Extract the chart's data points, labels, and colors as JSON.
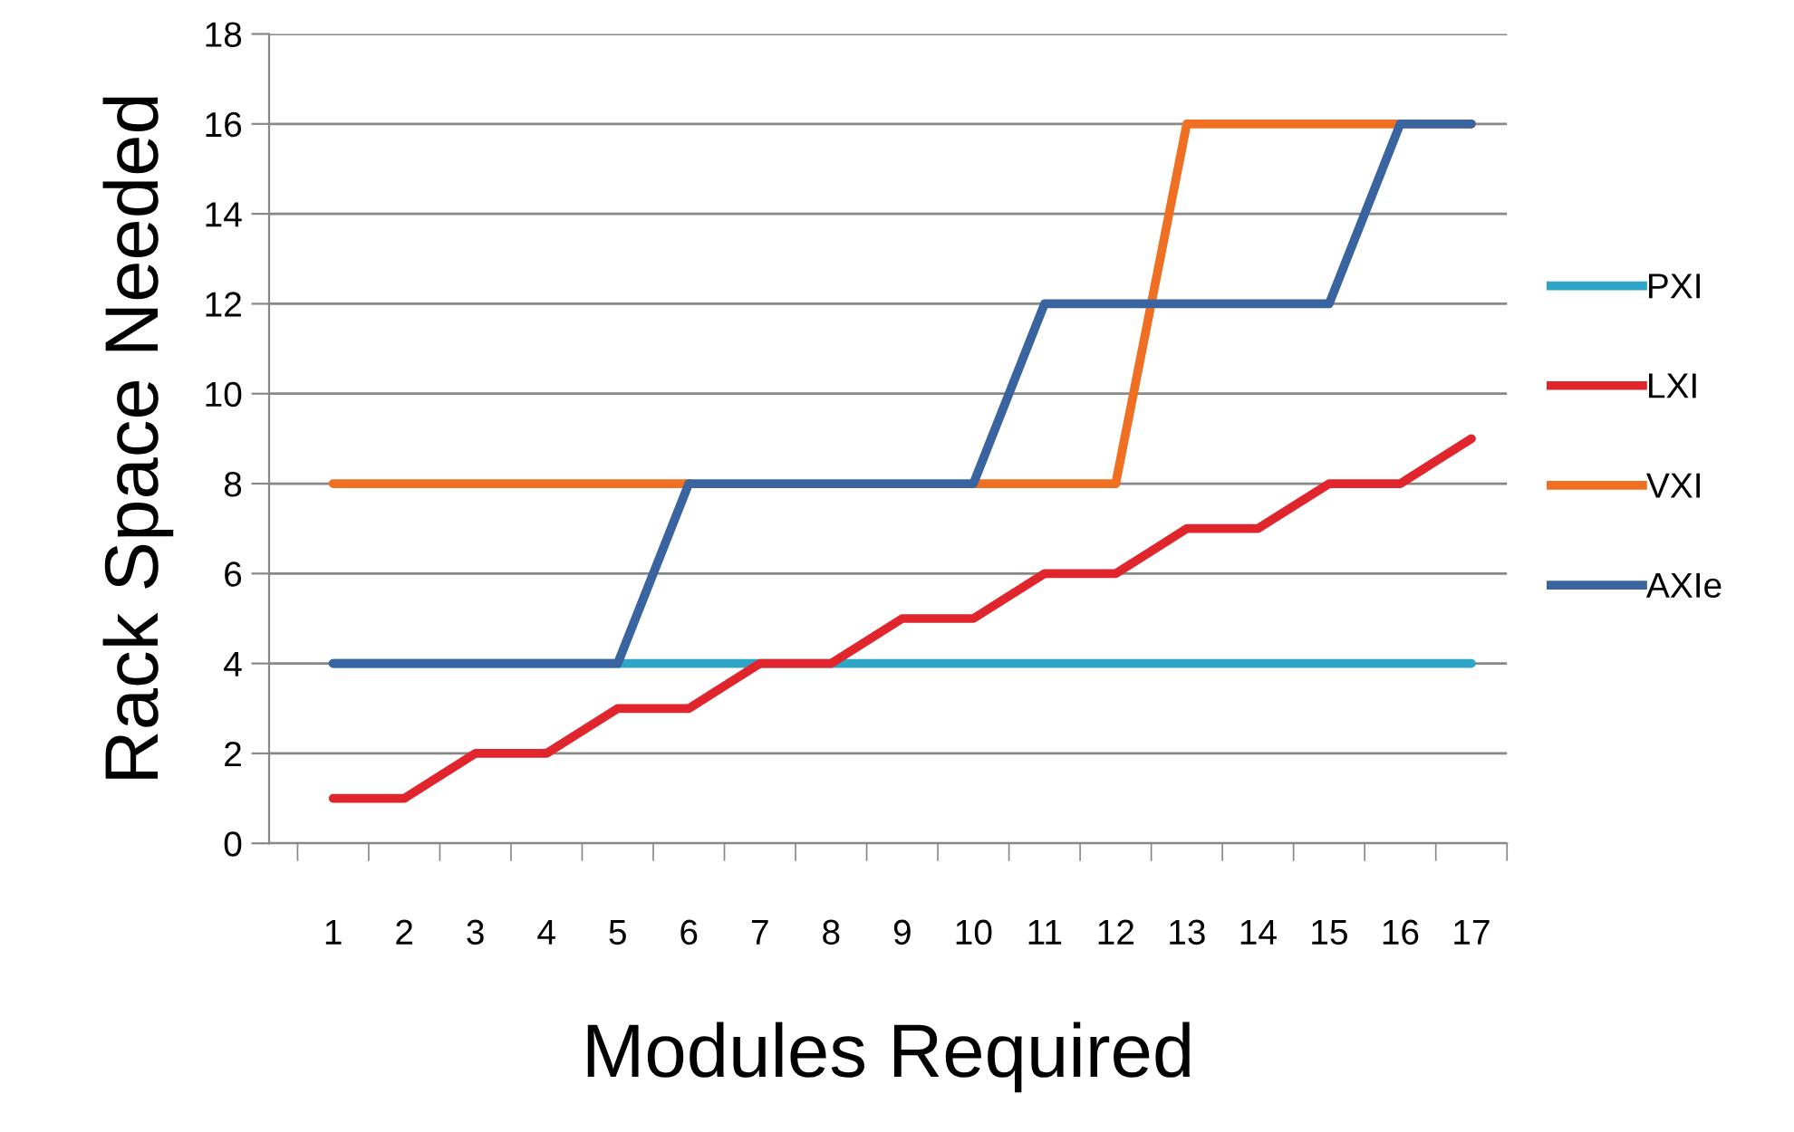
{
  "chart_data": {
    "type": "line",
    "xlabel": "Modules Required",
    "ylabel": "Rack Space Needed",
    "categories": [
      "1",
      "2",
      "3",
      "4",
      "5",
      "6",
      "7",
      "8",
      "9",
      "10",
      "11",
      "12",
      "13",
      "14",
      "15",
      "16",
      "17"
    ],
    "series": [
      {
        "name": "PXI",
        "color": "#2ea6c8",
        "values": [
          4,
          4,
          4,
          4,
          4,
          4,
          4,
          4,
          4,
          4,
          4,
          4,
          4,
          4,
          4,
          4,
          4
        ]
      },
      {
        "name": "LXI",
        "color": "#e0262c",
        "values": [
          1,
          1,
          2,
          2,
          3,
          3,
          4,
          4,
          5,
          5,
          6,
          6,
          7,
          7,
          8,
          8,
          9
        ]
      },
      {
        "name": "VXI",
        "color": "#ef7022",
        "values": [
          8,
          8,
          8,
          8,
          8,
          8,
          null,
          null,
          null,
          8,
          8,
          8,
          16,
          16,
          16,
          16,
          16
        ]
      },
      {
        "name": "AXIe",
        "color": "#3a64a0",
        "values": [
          4,
          4,
          4,
          4,
          4,
          8,
          8,
          8,
          8,
          8,
          12,
          12,
          12,
          12,
          12,
          16,
          16
        ]
      }
    ],
    "ylim": [
      0,
      18
    ],
    "yticks": [
      0,
      2,
      4,
      6,
      8,
      10,
      12,
      14,
      16,
      18
    ],
    "grid": "y",
    "legend": "right",
    "marker": "none",
    "line_style": "solid"
  }
}
